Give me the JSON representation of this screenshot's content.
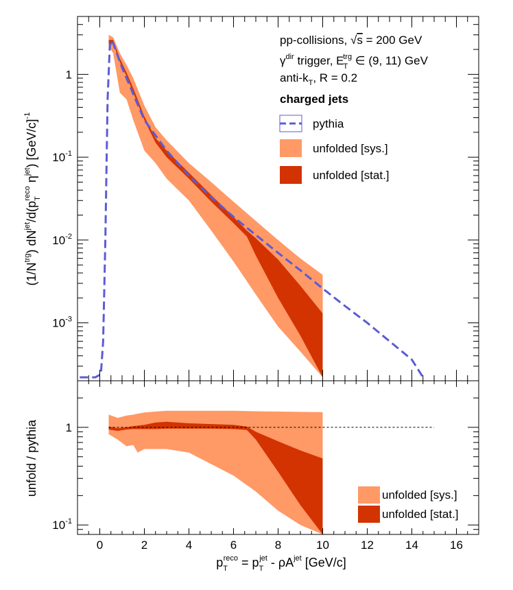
{
  "chart_data": [
    {
      "panel": "top",
      "type": "area",
      "xlim": [
        -1,
        17
      ],
      "ylim": [
        0.0002,
        5
      ],
      "yscale": "log",
      "grid": false,
      "xticks": [
        0,
        2,
        4,
        6,
        8,
        10,
        12,
        14,
        16
      ],
      "yticks": [
        {
          "value": 0.001,
          "base": "10",
          "exp": "-3"
        },
        {
          "value": 0.01,
          "base": "10",
          "exp": "-2"
        },
        {
          "value": 0.1,
          "base": "10",
          "exp": "-1"
        },
        {
          "value": 1,
          "base": "1",
          "exp": ""
        }
      ],
      "ylabel": "(1/N^trg) dN^jet/d(p_T^reco η^jet) [GeV/c]^-1",
      "annotations": {
        "line1": "pp-collisions, √s = 200 GeV",
        "line2": "γ^dir trigger, E_T^trg ∈ (9, 11) GeV",
        "line3": "anti-k_T, R = 0.2",
        "line4": "charged jets"
      },
      "legend_position": "top-right",
      "series": [
        {
          "name": "pythia",
          "kind": "dashed-line",
          "color": "#5b5bd6",
          "x": [
            -0.9,
            -0.2,
            0.05,
            0.15,
            0.25,
            0.35,
            0.45,
            0.55,
            1.0,
            2.0,
            3.0,
            4.0,
            5.0,
            6.0,
            7.0,
            8.0,
            9.0,
            10.0,
            11.0,
            12.0,
            13.0,
            14.0,
            14.5
          ],
          "y": [
            0.00022,
            0.00022,
            0.00024,
            0.0006,
            0.01,
            0.5,
            2.2,
            2.6,
            1.2,
            0.28,
            0.12,
            0.06,
            0.033,
            0.019,
            0.0115,
            0.007,
            0.0043,
            0.0026,
            0.0016,
            0.001,
            0.0006,
            0.00036,
            0.00022
          ]
        },
        {
          "name": "unfolded [sys.]",
          "kind": "band",
          "color": "#ff9966",
          "x": [
            0.4,
            0.6,
            0.9,
            1.2,
            1.5,
            2.0,
            2.5,
            3.0,
            4.0,
            5.0,
            6.0,
            7.0,
            8.0,
            9.0,
            10.0
          ],
          "lower": [
            2.2,
            1.8,
            0.6,
            0.5,
            0.28,
            0.12,
            0.085,
            0.055,
            0.03,
            0.013,
            0.0055,
            0.0022,
            0.0009,
            0.00045,
            0.00022
          ],
          "upper": [
            3.0,
            2.8,
            1.8,
            1.3,
            0.9,
            0.42,
            0.23,
            0.16,
            0.085,
            0.05,
            0.029,
            0.017,
            0.01,
            0.006,
            0.0038
          ]
        },
        {
          "name": "unfolded [stat.]",
          "kind": "band",
          "color": "#d23300",
          "x": [
            0.4,
            0.6,
            0.9,
            1.2,
            1.5,
            2.0,
            2.5,
            3.0,
            4.0,
            5.0,
            6.0,
            6.6,
            7.0,
            8.0,
            9.0,
            10.0
          ],
          "lower": [
            2.3,
            2.4,
            1.4,
            0.95,
            0.6,
            0.28,
            0.15,
            0.1,
            0.055,
            0.029,
            0.016,
            0.011,
            0.0065,
            0.002,
            0.0007,
            0.00022
          ],
          "upper": [
            2.6,
            2.6,
            1.55,
            1.05,
            0.68,
            0.31,
            0.17,
            0.12,
            0.065,
            0.035,
            0.019,
            0.013,
            0.0105,
            0.0058,
            0.0028,
            0.0013
          ]
        }
      ]
    },
    {
      "panel": "bottom",
      "type": "area",
      "xlim": [
        -1,
        17
      ],
      "ylim": [
        0.08,
        3
      ],
      "yscale": "log",
      "grid": false,
      "xticks": [
        0,
        2,
        4,
        6,
        8,
        10,
        12,
        14,
        16
      ],
      "yticks": [
        {
          "value": 0.1,
          "base": "10",
          "exp": "-1"
        },
        {
          "value": 1,
          "base": "1",
          "exp": ""
        }
      ],
      "ylabel": "unfold / pythia",
      "xlabel": "p_T^reco = p_T^jet - ρA^jet [GeV/c]",
      "reference_line": {
        "y": 1,
        "x": [
          0.4,
          15.0
        ],
        "style": "dotted"
      },
      "legend_position": "bottom-right",
      "series": [
        {
          "name": "unfolded [sys.]",
          "kind": "band",
          "color": "#ff9966",
          "x": [
            0.4,
            0.8,
            1.2,
            1.5,
            1.7,
            2.0,
            2.5,
            3.0,
            4.0,
            5.0,
            6.0,
            7.0,
            8.0,
            9.0,
            10.0
          ],
          "lower": [
            0.85,
            0.75,
            0.64,
            0.66,
            0.55,
            0.6,
            0.6,
            0.6,
            0.55,
            0.42,
            0.32,
            0.22,
            0.14,
            0.1,
            0.075
          ],
          "upper": [
            1.35,
            1.25,
            1.32,
            1.35,
            1.38,
            1.42,
            1.45,
            1.48,
            1.48,
            1.48,
            1.48,
            1.46,
            1.45,
            1.44,
            1.43
          ]
        },
        {
          "name": "unfolded [stat.]",
          "kind": "band",
          "color": "#d23300",
          "x": [
            0.4,
            0.8,
            1.2,
            1.5,
            2.0,
            2.5,
            3.0,
            4.0,
            5.0,
            6.0,
            6.6,
            7.0,
            8.0,
            9.0,
            10.0
          ],
          "lower": [
            0.95,
            0.92,
            0.95,
            0.96,
            0.96,
            0.96,
            0.97,
            0.97,
            0.97,
            0.96,
            0.94,
            0.75,
            0.35,
            0.16,
            0.075
          ],
          "upper": [
            1.02,
            0.98,
            1.0,
            1.03,
            1.06,
            1.12,
            1.14,
            1.1,
            1.08,
            1.06,
            1.02,
            0.9,
            0.72,
            0.58,
            0.48
          ]
        }
      ]
    }
  ]
}
